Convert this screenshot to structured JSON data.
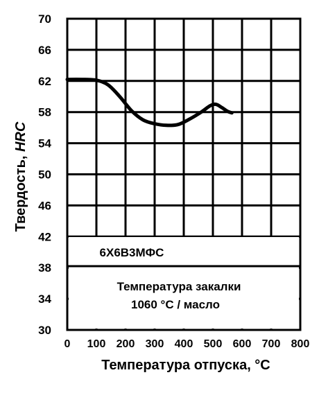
{
  "chart_data": {
    "type": "line",
    "xlabel": "Температура отпуска, °С",
    "ylabel_main": "Твердость, ",
    "ylabel_unit": "HRC",
    "xlim": [
      0,
      800
    ],
    "ylim": [
      30,
      70
    ],
    "x_ticks": [
      "0",
      "100",
      "200",
      "300",
      "400",
      "500",
      "600",
      "700",
      "800"
    ],
    "y_ticks": [
      "30",
      "34",
      "38",
      "42",
      "46",
      "50",
      "54",
      "58",
      "62",
      "66",
      "70"
    ],
    "grid": true,
    "series": [
      {
        "x": [
          0,
          50,
          100,
          140,
          180,
          220,
          260,
          300,
          340,
          380,
          420,
          460,
          490,
          510,
          530,
          550,
          565
        ],
        "y": [
          62.2,
          62.2,
          62.1,
          61.5,
          60.0,
          58.2,
          57.0,
          56.5,
          56.3,
          56.4,
          57.1,
          58.0,
          58.8,
          59.0,
          58.6,
          58.1,
          57.9
        ]
      }
    ],
    "annotations": {
      "steel_grade": "6Х6В3МФС",
      "quench_line1": "Температура закалки",
      "quench_line2": "1060 °С / масло"
    },
    "colors": {
      "line": "#000000",
      "grid": "#000000",
      "background": "#ffffff"
    }
  }
}
